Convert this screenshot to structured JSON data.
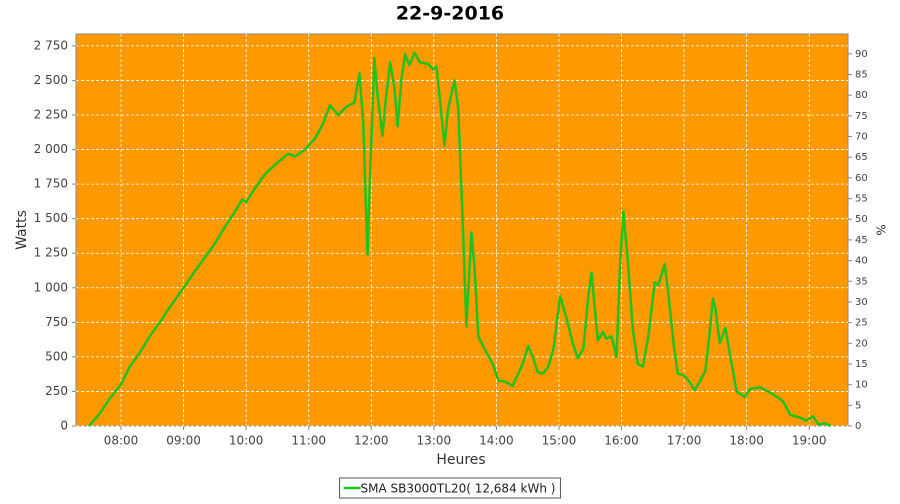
{
  "chart_data": {
    "type": "line",
    "title": "22-9-2016",
    "x_label": "Heures",
    "y_label": "Watts",
    "y2_label": "%",
    "x": [
      7.49,
      7.58,
      7.66,
      7.82,
      8.0,
      8.14,
      8.3,
      8.46,
      8.62,
      8.78,
      9.0,
      9.18,
      9.34,
      9.5,
      9.66,
      9.82,
      9.94,
      10.0,
      10.14,
      10.3,
      10.46,
      10.67,
      10.78,
      10.94,
      11.1,
      11.22,
      11.34,
      11.47,
      11.6,
      11.73,
      11.81,
      11.87,
      11.94,
      11.98,
      12.05,
      12.1,
      12.18,
      12.24,
      12.3,
      12.37,
      12.42,
      12.48,
      12.54,
      12.61,
      12.69,
      12.78,
      12.91,
      12.99,
      13.04,
      13.1,
      13.17,
      13.23,
      13.33,
      13.39,
      13.46,
      13.52,
      13.6,
      13.65,
      13.71,
      13.82,
      13.94,
      14.03,
      14.14,
      14.26,
      14.35,
      14.42,
      14.51,
      14.58,
      14.66,
      14.75,
      14.83,
      14.91,
      15.02,
      15.12,
      15.22,
      15.3,
      15.39,
      15.47,
      15.52,
      15.62,
      15.7,
      15.76,
      15.84,
      15.92,
      15.98,
      16.03,
      16.1,
      16.18,
      16.26,
      16.34,
      16.43,
      16.53,
      16.59,
      16.69,
      16.75,
      16.83,
      16.9,
      16.98,
      17.07,
      17.17,
      17.26,
      17.34,
      17.41,
      17.46,
      17.5,
      17.57,
      17.66,
      17.74,
      17.84,
      17.97,
      18.06,
      18.22,
      18.42,
      18.58,
      18.7,
      18.86,
      18.95,
      19.06,
      19.15,
      19.25,
      19.34
    ],
    "series": [
      {
        "name": "SMA SB3000TL20( 12,684 kWh )",
        "color": "#1fc21f",
        "values": [
          0,
          50,
          90,
          200,
          300,
          430,
          530,
          650,
          750,
          860,
          1000,
          1120,
          1220,
          1320,
          1440,
          1550,
          1640,
          1620,
          1720,
          1820,
          1890,
          1970,
          1950,
          2000,
          2080,
          2180,
          2320,
          2250,
          2310,
          2340,
          2550,
          2200,
          1240,
          1800,
          2660,
          2400,
          2100,
          2400,
          2630,
          2450,
          2170,
          2500,
          2690,
          2610,
          2700,
          2630,
          2620,
          2580,
          2600,
          2350,
          2030,
          2300,
          2500,
          2300,
          1500,
          720,
          1400,
          1150,
          650,
          550,
          450,
          330,
          320,
          290,
          380,
          450,
          580,
          500,
          390,
          380,
          430,
          550,
          940,
          780,
          600,
          490,
          560,
          950,
          1110,
          620,
          680,
          630,
          650,
          500,
          1200,
          1550,
          1200,
          700,
          450,
          430,
          650,
          1040,
          1020,
          1170,
          950,
          600,
          380,
          370,
          330,
          260,
          330,
          400,
          680,
          920,
          850,
          600,
          710,
          500,
          250,
          210,
          270,
          280,
          230,
          180,
          80,
          60,
          40,
          70,
          10,
          20,
          0
        ]
      }
    ],
    "xlim": [
      7.28,
      19.62
    ],
    "xticks": [
      {
        "value": 8,
        "label": "08:00"
      },
      {
        "value": 9,
        "label": "09:00"
      },
      {
        "value": 10,
        "label": "10:00"
      },
      {
        "value": 11,
        "label": "11:00"
      },
      {
        "value": 12,
        "label": "12:00"
      },
      {
        "value": 13,
        "label": "13:00"
      },
      {
        "value": 14,
        "label": "14:00"
      },
      {
        "value": 15,
        "label": "15:00"
      },
      {
        "value": 16,
        "label": "16:00"
      },
      {
        "value": 17,
        "label": "17:00"
      },
      {
        "value": 18,
        "label": "18:00"
      },
      {
        "value": 19,
        "label": "19:00"
      }
    ],
    "ylim": [
      0,
      2836
    ],
    "yticks": [
      0,
      250,
      500,
      750,
      {
        "value": 1000,
        "label": "1 000"
      },
      {
        "value": 1250,
        "label": "1 250"
      },
      {
        "value": 1500,
        "label": "1 500"
      },
      {
        "value": 1750,
        "label": "1 750"
      },
      {
        "value": 2000,
        "label": "2 000"
      },
      {
        "value": 2250,
        "label": "2 250"
      },
      {
        "value": 2500,
        "label": "2 500"
      },
      {
        "value": 2750,
        "label": "2 750"
      }
    ],
    "y2lim": [
      0,
      94.8
    ],
    "y2ticks": [
      0,
      5,
      10,
      15,
      20,
      25,
      30,
      35,
      40,
      45,
      50,
      55,
      60,
      65,
      70,
      75,
      80,
      85,
      90
    ],
    "grid": true,
    "plot_background": "#ff9900",
    "legend": "bottom"
  }
}
